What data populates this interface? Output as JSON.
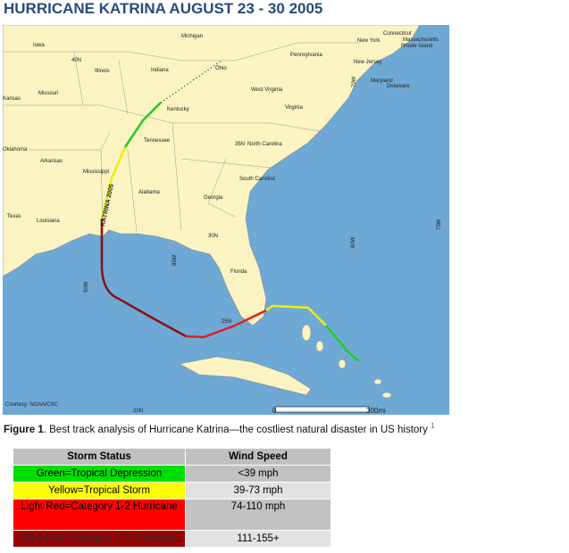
{
  "header": {
    "title": "HURRICANE KATRINA AUGUST 23 - 30 2005"
  },
  "map": {
    "places": [
      "Iowa",
      "Michigan",
      "Illinois",
      "Indiana",
      "Ohio",
      "Pennsylvania",
      "New York",
      "Connecticut",
      "Massachusetts",
      "Rhode Island",
      "New Jersey",
      "Maryland",
      "Delaware",
      "Missouri",
      "Kansas",
      "Kentucky",
      "West Virginia",
      "Virginia",
      "Tennessee",
      "North Carolina",
      "Oklahoma",
      "Arkansas",
      "Mississippi",
      "South Carolina",
      "Alabama",
      "Georgia",
      "Texas",
      "Louisiana",
      "Florida"
    ],
    "grid": [
      "40N",
      "35N",
      "30N",
      "25N",
      "20N",
      "90W",
      "85W",
      "80W",
      "75W",
      "70W"
    ],
    "storm": "KATRINA 2005",
    "credit": "Courtesy: NOAA/CSC",
    "scale": [
      "0",
      "300mi"
    ]
  },
  "caption": {
    "label": "Figure 1",
    "text": ". Best track analysis of Hurricane Katrina—the costliest natural disaster in US history",
    "note": "1"
  },
  "table": {
    "header": [
      "Storm Status",
      "Wind Speed"
    ],
    "rows": [
      [
        "Green=Tropical Depression",
        "<39 mph"
      ],
      [
        "Yellow=Tropical Storm",
        "39-73 mph"
      ],
      [
        "Light Red=Category 1-2 Hurricane",
        "74-110 mph"
      ],
      [
        "Dark Red=Category 3-5 Hurricane",
        "111-155+"
      ]
    ]
  }
}
